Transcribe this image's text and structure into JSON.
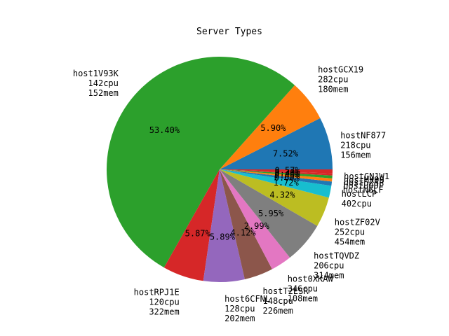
{
  "chart_data": {
    "type": "pie",
    "title": "Server Types",
    "start_angle": 0,
    "counterclockwise": true,
    "slices": [
      {
        "name": "hostNF877",
        "cpu": "218cpu",
        "mem": "156mem",
        "pct": 7.52,
        "pct_label": "7.52%",
        "color": "#1f77b4"
      },
      {
        "name": "hostGCX19",
        "cpu": "282cpu",
        "mem": "180mem",
        "pct": 5.9,
        "pct_label": "5.90%",
        "color": "#ff7f0e"
      },
      {
        "name": "host1V93K",
        "cpu": "142cpu",
        "mem": "152mem",
        "pct": 53.4,
        "pct_label": "53.40%",
        "color": "#2ca02c"
      },
      {
        "name": "hostRPJ1E",
        "cpu": "120cpu",
        "mem": "322mem",
        "pct": 5.87,
        "pct_label": "5.87%",
        "color": "#d62728"
      },
      {
        "name": "host6CFNL",
        "cpu": "128cpu",
        "mem": "202mem",
        "pct": 5.89,
        "pct_label": "5.89%",
        "color": "#9467bd"
      },
      {
        "name": "hostT2ESR",
        "cpu": "148cpu",
        "mem": "226mem",
        "pct": 4.12,
        "pct_label": "4.12%",
        "color": "#8c564b"
      },
      {
        "name": "host0XKAW",
        "cpu": "346cpu",
        "mem": "108mem",
        "pct": 2.99,
        "pct_label": "2.99%",
        "color": "#e377c2"
      },
      {
        "name": "hostTQVDZ",
        "cpu": "206cpu",
        "mem": "314mem",
        "pct": 5.95,
        "pct_label": "5.95%",
        "color": "#7f7f7f"
      },
      {
        "name": "hostZF02V",
        "cpu": "252cpu",
        "mem": "454mem",
        "pct": 4.32,
        "pct_label": "4.32%",
        "color": "#bcbd22"
      },
      {
        "name": "hostLCP",
        "cpu": "402cpu",
        "mem": "",
        "pct": 1.72,
        "pct_label": "1.72%",
        "color": "#17becf"
      },
      {
        "name": "hostN6LF",
        "cpu": "",
        "mem": "",
        "pct": 0.6,
        "pct_label": "0.60%",
        "color": "#1f77b4"
      },
      {
        "name": "hostUODP",
        "cpu": "",
        "mem": "",
        "pct": 0.45,
        "pct_label": "0.45%",
        "color": "#ff7f0e"
      },
      {
        "name": "host5Z5P",
        "cpu": "",
        "mem": "",
        "pct": 0.4,
        "pct_label": "0.40%",
        "color": "#2ca02c"
      },
      {
        "name": "hostMX99",
        "cpu": "",
        "mem": "",
        "pct": 0.3,
        "pct_label": "0.30%",
        "color": "#d62728"
      },
      {
        "name": "hostGN1W1",
        "cpu": "",
        "mem": "",
        "pct": 0.57,
        "pct_label": "0.57%",
        "color": "#d62728"
      }
    ]
  }
}
